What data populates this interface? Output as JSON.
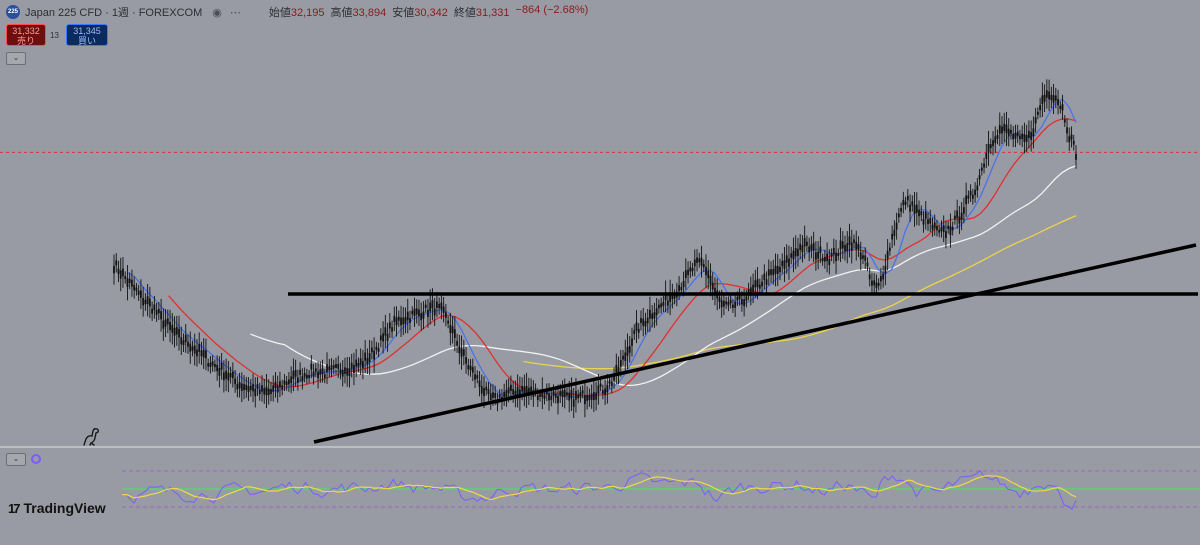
{
  "header": {
    "symbol_icon": "225",
    "title": "Japan 225 CFD · 1週 · FOREXCOM",
    "ohlc": [
      {
        "label": "始値",
        "value": "32,195"
      },
      {
        "label": "高値",
        "value": "33,894"
      },
      {
        "label": "安値",
        "value": "30,342"
      },
      {
        "label": "終値",
        "value": "31,331"
      }
    ],
    "change": "−864 (−2.68%)"
  },
  "trade": {
    "sell_price": "31,332",
    "sell_label": "売り",
    "spread": "13",
    "buy_price": "31,345",
    "buy_label": "買い"
  },
  "brand": "TradingView",
  "colors": {
    "background": "#989ba3",
    "candle": "#121212",
    "ma_blue": "#4a73e8",
    "ma_red": "#e03030",
    "ma_white": "#f2f2f2",
    "ma_yellow": "#ecd34a",
    "price_line": "#e03030",
    "rsi": "#7b5cff",
    "rsi_signal": "#f0d84a",
    "rsi_mid": "#4ddc6a",
    "trendline": "#000000"
  },
  "chart_data": {
    "type": "line",
    "series": [
      {
        "values": [
          26600,
          26300,
          25900,
          25600,
          25200,
          25000,
          24700,
          24300,
          24000,
          23700,
          23400,
          23300,
          23000,
          22800,
          22500,
          22300,
          22100,
          21900,
          21600,
          21500,
          21400,
          21300,
          21200,
          21250,
          21400,
          21600,
          21800,
          21900,
          22000,
          22100,
          22100,
          22050,
          22100,
          22200,
          22250,
          22300,
          22400,
          22600,
          22900,
          23300,
          23700,
          24100,
          24300,
          24400,
          24500,
          24600,
          24700,
          24800,
          24650,
          24200,
          23500,
          22900,
          22300,
          21900,
          21400,
          21000,
          20900,
          21100,
          21200,
          21300,
          21300,
          21250,
          21200,
          21150,
          21100,
          21100,
          21000,
          20950,
          21000,
          21100,
          21200,
          21300,
          21400,
          21700,
          22200,
          22800,
          23500,
          24000,
          24300,
          24600,
          24800,
          25100,
          25400,
          25700,
          26100,
          26500,
          26700,
          26300,
          25500,
          24900,
          24800,
          24900,
          25100,
          25300,
          25600,
          25900,
          26100,
          26300,
          26500,
          26800,
          27200,
          27400,
          27300,
          27100,
          27000,
          26900,
          27100,
          27400,
          27600,
          27300,
          26900,
          25800,
          25600,
          26500,
          27700,
          28600,
          29300,
          29100,
          28700,
          28500,
          28200,
          27900,
          28000,
          28300,
          28700,
          29200,
          29600,
          30400,
          31400,
          32000,
          32300,
          32200,
          32000,
          31800,
          31900,
          32500,
          33500,
          33900,
          33700,
          33200,
          32100,
          31331
        ]
      }
    ],
    "y_range": [
      19000,
      34800
    ],
    "last_price": 31331,
    "rsi": {
      "levels": [
        30,
        50,
        70
      ]
    }
  }
}
